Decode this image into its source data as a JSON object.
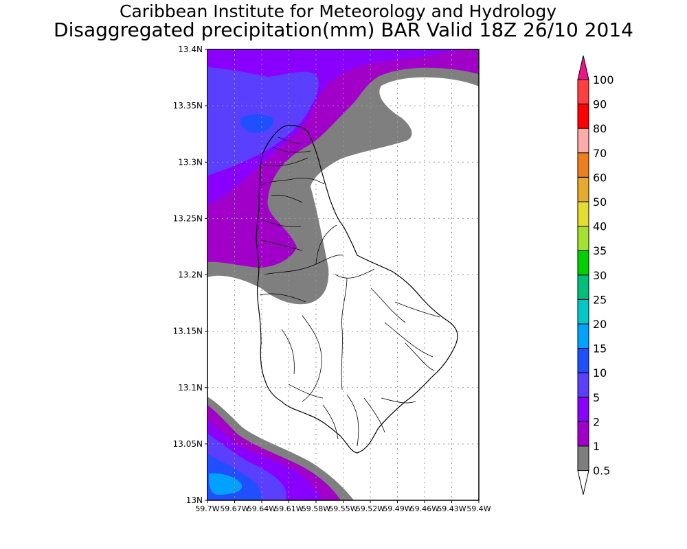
{
  "header": {
    "title": "Caribbean Institute for Meteorology and Hydrology",
    "subtitle": "Disaggregated precipitation(mm) BAR Valid 18Z 26/10 2014"
  },
  "axes": {
    "lat_labels": [
      "13.4N",
      "13.35N",
      "13.3N",
      "13.25N",
      "13.2N",
      "13.15N",
      "13.1N",
      "13.05N",
      "13N"
    ],
    "lat_values": [
      13.4,
      13.35,
      13.3,
      13.25,
      13.2,
      13.15,
      13.1,
      13.05,
      13.0
    ],
    "lon_labels": [
      "59.7W",
      "59.67W",
      "59.64W",
      "59.61W",
      "59.58W",
      "59.55W",
      "59.52W",
      "59.49W",
      "59.46W",
      "59.43W",
      "59.4W"
    ],
    "lon_values": [
      -59.7,
      -59.67,
      -59.64,
      -59.61,
      -59.58,
      -59.55,
      -59.52,
      -59.49,
      -59.46,
      -59.43,
      -59.4
    ],
    "lat_range": [
      13.0,
      13.4
    ],
    "lon_range": [
      -59.7,
      -59.4
    ],
    "grid": true
  },
  "colorbar": {
    "labels": [
      "100",
      "90",
      "80",
      "70",
      "60",
      "50",
      "40",
      "35",
      "30",
      "25",
      "20",
      "15",
      "10",
      "5",
      "2",
      "1",
      "0.5"
    ],
    "colors": [
      "#ff3f3f",
      "#ff0000",
      "#ffaaaa",
      "#ee7f1f",
      "#e6ab2c",
      "#e6dd33",
      "#a5e22f",
      "#00cf00",
      "#00bf78",
      "#00c8c8",
      "#00a2ff",
      "#1f4fff",
      "#5a3fff",
      "#8a00ff",
      "#a000c8",
      "#7f7f7f"
    ],
    "over_color": "#ee1388",
    "under_color": "#ffffff"
  },
  "chart_data": {
    "type": "heatmap",
    "title": "Disaggregated precipitation(mm) BAR Valid 18Z 26/10 2014",
    "levels": [
      0.5,
      1,
      2,
      5,
      10,
      15,
      20,
      25,
      30,
      35,
      40,
      50,
      60,
      70,
      80,
      90,
      100
    ],
    "xlim": [
      -59.7,
      -59.4
    ],
    "ylim": [
      13.0,
      13.4
    ],
    "regions": [
      {
        "location": "north / northwest of island",
        "range_mm": "1-10",
        "max_class": "10-15 near 59.66W 13.34N"
      },
      {
        "location": "west coast of island",
        "range_mm": "0.5-2"
      },
      {
        "location": "southwest corner",
        "range_mm": "0.5-20",
        "max_class": "15-20 near 59.69W 13.01N"
      },
      {
        "location": "northeast sea",
        "range_mm": "0.5-2"
      }
    ]
  }
}
